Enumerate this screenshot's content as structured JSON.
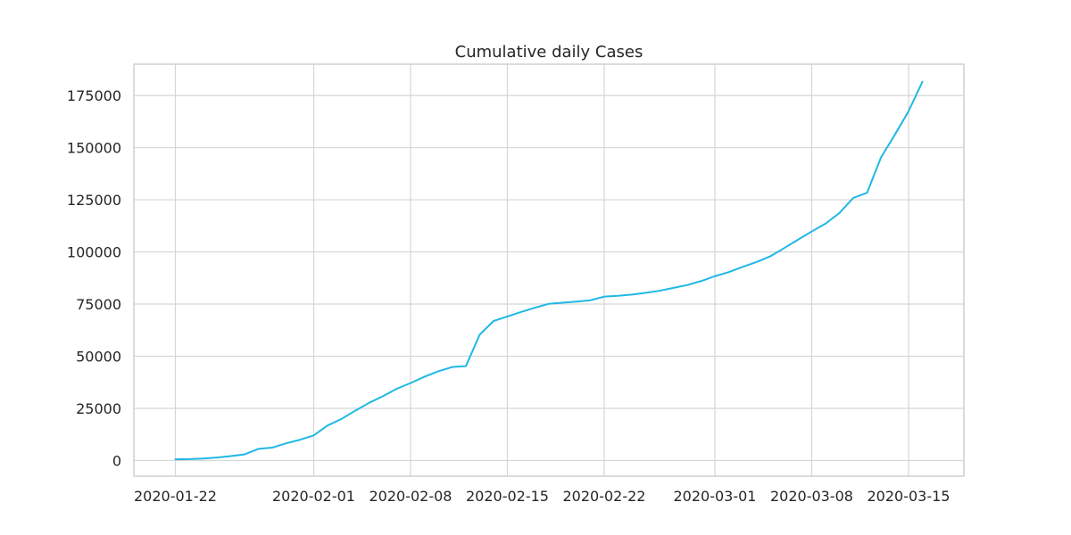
{
  "chart_data": {
    "type": "line",
    "title": "Cumulative daily Cases",
    "xlabel": "",
    "ylabel": "",
    "grid": true,
    "x_is_date": true,
    "xlim": [
      "2020-01-19",
      "2020-03-19"
    ],
    "ylim": [
      -7500,
      190000
    ],
    "x_ticks": [
      "2020-01-22",
      "2020-02-01",
      "2020-02-08",
      "2020-02-15",
      "2020-02-22",
      "2020-03-01",
      "2020-03-08",
      "2020-03-15"
    ],
    "y_ticks": [
      0,
      25000,
      50000,
      75000,
      100000,
      125000,
      150000,
      175000
    ],
    "colors": {
      "series": "#1fb8e6",
      "grid": "#d6d6d6",
      "text": "#262626"
    },
    "x": [
      "2020-01-22",
      "2020-01-23",
      "2020-01-24",
      "2020-01-25",
      "2020-01-26",
      "2020-01-27",
      "2020-01-28",
      "2020-01-29",
      "2020-01-30",
      "2020-01-31",
      "2020-02-01",
      "2020-02-02",
      "2020-02-03",
      "2020-02-04",
      "2020-02-05",
      "2020-02-06",
      "2020-02-07",
      "2020-02-08",
      "2020-02-09",
      "2020-02-10",
      "2020-02-11",
      "2020-02-12",
      "2020-02-13",
      "2020-02-14",
      "2020-02-15",
      "2020-02-16",
      "2020-02-17",
      "2020-02-18",
      "2020-02-19",
      "2020-02-20",
      "2020-02-21",
      "2020-02-22",
      "2020-02-23",
      "2020-02-24",
      "2020-02-25",
      "2020-02-26",
      "2020-02-27",
      "2020-02-28",
      "2020-02-29",
      "2020-03-01",
      "2020-03-02",
      "2020-03-03",
      "2020-03-04",
      "2020-03-05",
      "2020-03-06",
      "2020-03-07",
      "2020-03-08",
      "2020-03-09",
      "2020-03-10",
      "2020-03-11",
      "2020-03-12",
      "2020-03-13",
      "2020-03-14",
      "2020-03-15",
      "2020-03-16"
    ],
    "series": [
      {
        "values": [
          555,
          653,
          941,
          1434,
          2118,
          2927,
          5578,
          6166,
          8234,
          9927,
          12038,
          16787,
          19881,
          23892,
          27635,
          30817,
          34391,
          37120,
          40150,
          42762,
          44802,
          45221,
          60368,
          66885,
          69030,
          71224,
          73258,
          75136,
          75639,
          76197,
          76819,
          78572,
          78958,
          79561,
          80406,
          81388,
          82746,
          84112,
          86011,
          88369,
          90306,
          92840,
          95120,
          97886,
          101801,
          105847,
          109821,
          113590,
          118620,
          125875,
          128343,
          145205,
          156101,
          167454,
          181574
        ]
      }
    ]
  }
}
